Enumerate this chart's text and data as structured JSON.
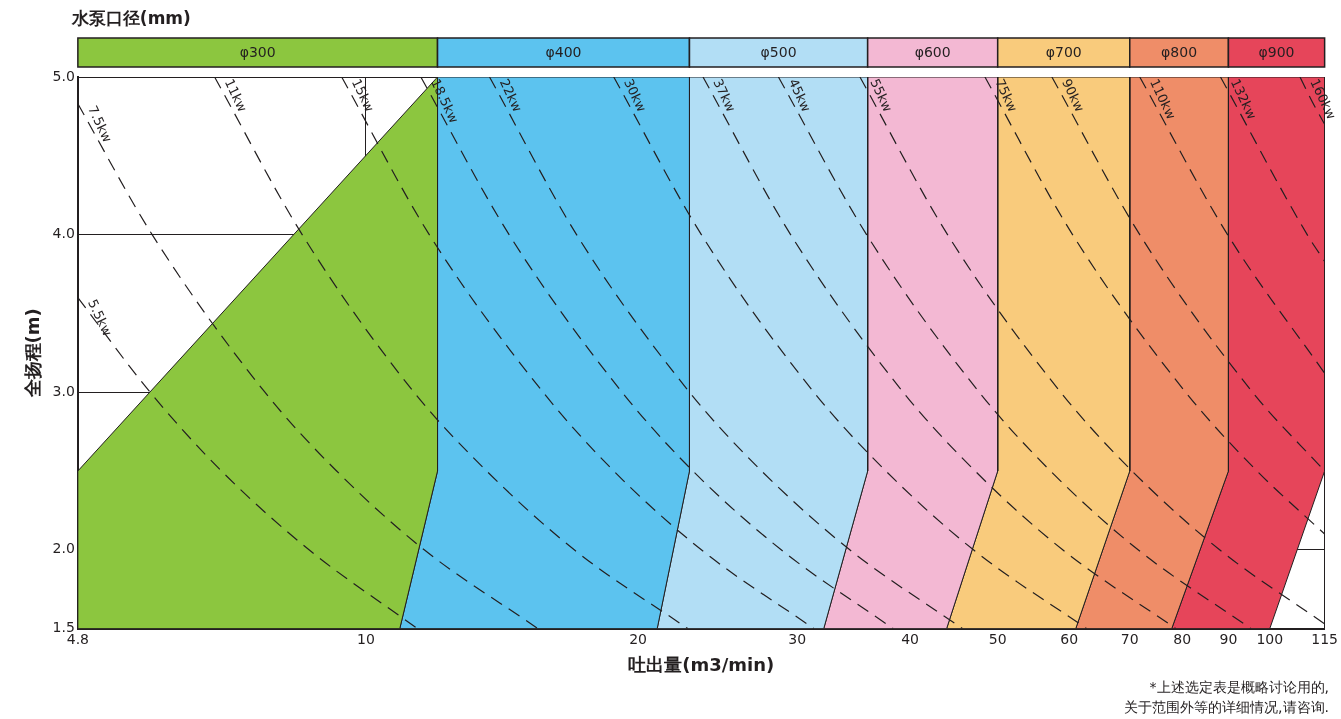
{
  "chart_data": {
    "type": "area",
    "legend_title": "水泵口径(mm)",
    "xlabel": "吐出量(m3/min)",
    "ylabel": "全扬程(m)",
    "log": "x",
    "grid": true,
    "legend": "top",
    "line_style": "dashed",
    "xlim": [
      4.8,
      115
    ],
    "xticks": [
      4.8,
      10,
      20,
      30,
      40,
      50,
      60,
      70,
      80,
      90,
      100,
      115
    ],
    "ylim": [
      1.5,
      5.0
    ],
    "yticks": [
      1.5,
      {
        "value": 2,
        "label": "2.0"
      },
      {
        "value": 3,
        "label": "3.0"
      },
      {
        "value": 4,
        "label": "4.0"
      },
      {
        "value": 5,
        "label": "5.0"
      }
    ],
    "series": [
      {
        "name": "φ300",
        "color": "#8cc63f",
        "x": [
          4.8,
          12,
          12,
          10.9,
          4.8
        ],
        "values": [
          2.5,
          5.0,
          2.5,
          1.5,
          1.5
        ]
      },
      {
        "name": "φ400",
        "color": "#5cc3ef",
        "x": [
          10.9,
          12,
          12,
          22.8,
          22.8,
          21
        ],
        "values": [
          1.5,
          2.5,
          5.0,
          5.0,
          2.5,
          1.5
        ]
      },
      {
        "name": "φ500",
        "color": "#b2def5",
        "x": [
          21,
          22.8,
          22.8,
          35.9,
          35.9,
          32.1
        ],
        "values": [
          1.5,
          2.5,
          5.0,
          5.0,
          2.5,
          1.5
        ]
      },
      {
        "name": "φ600",
        "color": "#f3b8d3",
        "x": [
          32.1,
          35.9,
          35.9,
          50,
          50,
          43.9
        ],
        "values": [
          1.5,
          2.5,
          5.0,
          5.0,
          2.5,
          1.5
        ]
      },
      {
        "name": "φ700",
        "color": "#f9cb7c",
        "x": [
          43.9,
          50,
          50,
          70,
          70,
          61
        ],
        "values": [
          1.5,
          2.5,
          5.0,
          5.0,
          2.5,
          1.5
        ]
      },
      {
        "name": "φ800",
        "color": "#ef8d68",
        "x": [
          61,
          70,
          70,
          90,
          90,
          77.9
        ],
        "values": [
          1.5,
          2.5,
          5.0,
          5.0,
          2.5,
          1.5
        ]
      },
      {
        "name": "φ900",
        "color": "#e6455a",
        "x": [
          77.9,
          90,
          90,
          115,
          115,
          100
        ],
        "values": [
          1.5,
          2.5,
          5.0,
          5.0,
          2.5,
          1.5
        ]
      },
      {
        "name": "5.5kw",
        "type": "line",
        "color": "#231f20",
        "x": [
          4.8,
          5.77,
          6.92,
          8.65,
          11.4
        ],
        "values": [
          3.6,
          3.0,
          2.5,
          2.0,
          1.5
        ]
      },
      {
        "name": "7.5kw",
        "type": "line",
        "color": "#231f20",
        "x": [
          4.8,
          5.8,
          7.73,
          9.28,
          11.6,
          15.5
        ],
        "values": [
          4.83,
          4.0,
          3.0,
          2.5,
          2.0,
          1.5
        ]
      },
      {
        "name": "11kw",
        "type": "line",
        "color": "#231f20",
        "x": [
          6.8,
          8.5,
          11.3,
          13.6,
          17,
          22.7
        ],
        "values": [
          5.0,
          4.0,
          3.0,
          2.5,
          2.0,
          1.5
        ]
      },
      {
        "name": "15kw",
        "type": "line",
        "color": "#231f20",
        "x": [
          9.4,
          11.75,
          15.7,
          18.8,
          23.5,
          31.3
        ],
        "values": [
          5.0,
          4.0,
          3.0,
          2.5,
          2.0,
          1.5
        ]
      },
      {
        "name": "18.5kw",
        "type": "line",
        "color": "#231f20",
        "x": [
          11.5,
          14.4,
          19.2,
          23,
          28.8,
          38.3
        ],
        "values": [
          5.0,
          4.0,
          3.0,
          2.5,
          2.0,
          1.5
        ]
      },
      {
        "name": "22kw",
        "type": "line",
        "color": "#231f20",
        "x": [
          13.7,
          17.1,
          22.8,
          27.4,
          34.3,
          45.7
        ],
        "values": [
          5.0,
          4.0,
          3.0,
          2.5,
          2.0,
          1.5
        ]
      },
      {
        "name": "30kw",
        "type": "line",
        "color": "#231f20",
        "x": [
          18.8,
          23.5,
          31.3,
          37.6,
          47,
          62.7
        ],
        "values": [
          5.0,
          4.0,
          3.0,
          2.5,
          2.0,
          1.5
        ]
      },
      {
        "name": "37kw",
        "type": "line",
        "color": "#231f20",
        "x": [
          23.6,
          29.5,
          39.3,
          47.2,
          59,
          78.7
        ],
        "values": [
          5.0,
          4.0,
          3.0,
          2.5,
          2.0,
          1.5
        ]
      },
      {
        "name": "45kw",
        "type": "line",
        "color": "#231f20",
        "x": [
          28.6,
          35.8,
          47.7,
          57.2,
          71.5,
          95.3
        ],
        "values": [
          5.0,
          4.0,
          3.0,
          2.5,
          2.0,
          1.5
        ]
      },
      {
        "name": "55kw",
        "type": "line",
        "color": "#231f20",
        "x": [
          35.2,
          44,
          58.7,
          70.4,
          88,
          115
        ],
        "values": [
          5.0,
          4.0,
          3.0,
          2.5,
          2.0,
          1.53
        ]
      },
      {
        "name": "75kw",
        "type": "line",
        "color": "#231f20",
        "x": [
          48.4,
          60.5,
          80.7,
          96.8,
          115
        ],
        "values": [
          5.0,
          4.0,
          3.0,
          2.5,
          2.1
        ]
      },
      {
        "name": "90kw",
        "type": "line",
        "color": "#231f20",
        "x": [
          57.4,
          71.8,
          95.7,
          115
        ],
        "values": [
          5.0,
          4.0,
          3.0,
          2.5
        ]
      },
      {
        "name": "110kw",
        "type": "line",
        "color": "#231f20",
        "x": [
          71.8,
          89.8,
          115
        ],
        "values": [
          5.0,
          4.0,
          3.12
        ]
      },
      {
        "name": "132kw",
        "type": "line",
        "color": "#231f20",
        "x": [
          88.2,
          110,
          115
        ],
        "values": [
          5.0,
          4.0,
          3.83
        ]
      },
      {
        "name": "160kw",
        "type": "line",
        "color": "#231f20",
        "x": [
          108,
          111.5,
          115
        ],
        "values": [
          5.0,
          4.84,
          4.7
        ]
      }
    ],
    "annotations": [
      "*上述选定表是概略讨论用的,",
      "关于范围外等的详细情况,请咨询."
    ]
  }
}
